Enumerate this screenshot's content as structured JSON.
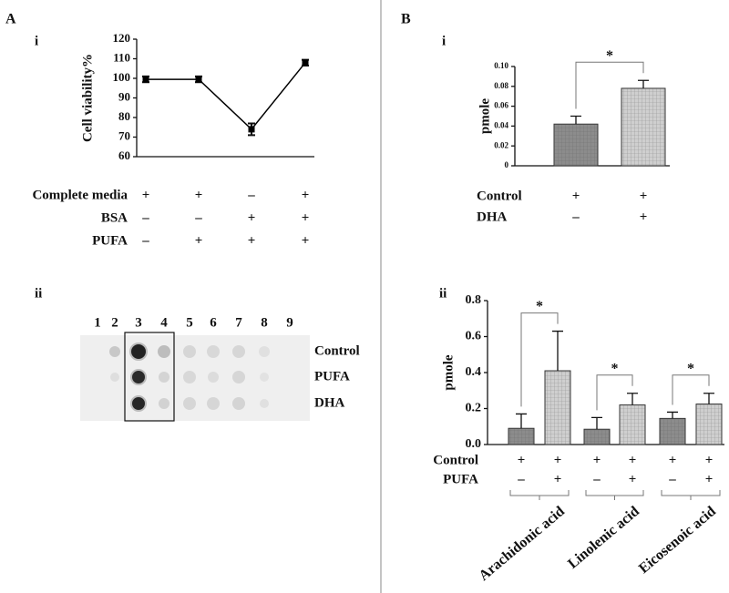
{
  "panel_labels": {
    "a": "A",
    "a_i": "i",
    "a_ii": "ii",
    "b": "B",
    "b_i": "i",
    "b_ii": "ii"
  },
  "blot": {
    "lanes": [
      "1",
      "2",
      "3",
      "4",
      "5",
      "6",
      "7",
      "8",
      "9"
    ],
    "rows": [
      "Control",
      "PUFA",
      "DHA"
    ]
  },
  "chart_data": [
    {
      "type": "line",
      "y_label": "Cell viability%",
      "values": [
        99.5,
        99.5,
        74,
        108
      ],
      "errors": [
        1.5,
        1.5,
        3,
        1.5
      ],
      "color": "#000000",
      "ylim": [
        60,
        120
      ],
      "yticks": [
        60,
        70,
        80,
        90,
        100,
        110,
        120
      ],
      "conditions": [
        {
          "label": "Complete media",
          "signs": [
            "+",
            "+",
            "–",
            "+"
          ]
        },
        {
          "label": "BSA",
          "signs": [
            "–",
            "–",
            "+",
            "+"
          ]
        },
        {
          "label": "PUFA",
          "signs": [
            "–",
            "+",
            "+",
            "+"
          ]
        }
      ]
    },
    {
      "type": "bar",
      "y_label": "pmole",
      "values": [
        0.042,
        0.078
      ],
      "errors": [
        0.008,
        0.008
      ],
      "colors": [
        "#8c8c8c",
        "#cfcfcf"
      ],
      "ylim": [
        0,
        0.1
      ],
      "yticks": [
        0,
        0.02,
        0.04,
        0.06,
        0.08,
        {
          "value": 0.1,
          "label": "0.10"
        }
      ],
      "conditions": [
        {
          "label": "Control",
          "signs": [
            "+",
            "+"
          ]
        },
        {
          "label": "DHA",
          "signs": [
            "–",
            "+"
          ]
        }
      ],
      "significance": [
        "*"
      ]
    },
    {
      "type": "bar",
      "y_label": "pmole",
      "values": [
        0.09,
        0.41,
        0.085,
        0.22,
        0.145,
        0.225
      ],
      "errors": [
        0.08,
        0.22,
        0.065,
        0.065,
        0.035,
        0.06
      ],
      "colors": [
        "#8c8c8c",
        "#cfcfcf",
        "#8c8c8c",
        "#cfcfcf",
        "#8c8c8c",
        "#cfcfcf"
      ],
      "ylim": [
        0,
        0.8
      ],
      "yticks": [
        {
          "value": 0,
          "label": "0.0"
        },
        0.2,
        0.4,
        0.6,
        0.8
      ],
      "conditions": [
        {
          "label": "Control",
          "signs": [
            "+",
            "+",
            "+",
            "+",
            "+",
            "+"
          ]
        },
        {
          "label": "PUFA",
          "signs": [
            "–",
            "+",
            "–",
            "+",
            "–",
            "+"
          ]
        }
      ],
      "groups": [
        "Arachidonic acid",
        "Linolenic acid",
        "Eicosenoic acid"
      ],
      "significance": [
        "*",
        "*",
        "*"
      ]
    }
  ]
}
